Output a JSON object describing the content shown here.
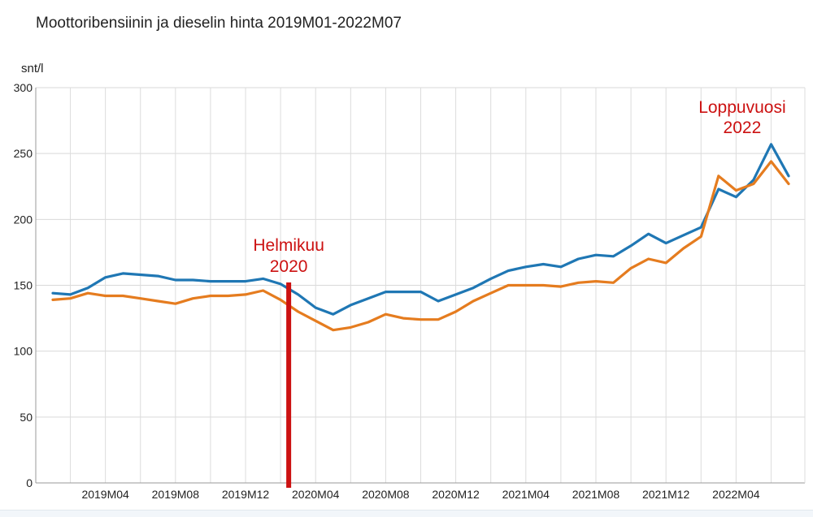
{
  "chart_data": {
    "type": "line",
    "title": "Moottoribensiinin ja dieselin hinta 2019M01-2022M07",
    "ylabel": "snt/l",
    "ylim": [
      0,
      300
    ],
    "yticks": [
      0,
      50,
      100,
      150,
      200,
      250,
      300
    ],
    "x": [
      "2019M01",
      "2019M02",
      "2019M03",
      "2019M04",
      "2019M05",
      "2019M06",
      "2019M07",
      "2019M08",
      "2019M09",
      "2019M10",
      "2019M11",
      "2019M12",
      "2020M01",
      "2020M02",
      "2020M03",
      "2020M04",
      "2020M05",
      "2020M06",
      "2020M07",
      "2020M08",
      "2020M09",
      "2020M10",
      "2020M11",
      "2020M12",
      "2021M01",
      "2021M02",
      "2021M03",
      "2021M04",
      "2021M05",
      "2021M06",
      "2021M07",
      "2021M08",
      "2021M09",
      "2021M10",
      "2021M11",
      "2021M12",
      "2022M01",
      "2022M02",
      "2022M03",
      "2022M04",
      "2022M05",
      "2022M06",
      "2022M07"
    ],
    "xtick_labels": [
      "2019M04",
      "2019M08",
      "2019M12",
      "2020M04",
      "2020M08",
      "2020M12",
      "2021M04",
      "2021M08",
      "2021M12",
      "2022M04"
    ],
    "grid": true,
    "series": [
      {
        "color": "#1f77b4",
        "values": [
          144,
          143,
          148,
          156,
          159,
          158,
          157,
          154,
          154,
          153,
          153,
          153,
          155,
          151,
          143,
          133,
          128,
          135,
          140,
          145,
          145,
          145,
          138,
          143,
          148,
          155,
          161,
          164,
          166,
          164,
          170,
          173,
          172,
          180,
          189,
          182,
          188,
          194,
          223,
          217,
          230,
          257,
          233
        ]
      },
      {
        "color": "#e57c1f",
        "values": [
          139,
          140,
          144,
          142,
          142,
          140,
          138,
          136,
          140,
          142,
          142,
          143,
          146,
          139,
          130,
          123,
          116,
          118,
          122,
          128,
          125,
          124,
          124,
          130,
          138,
          144,
          150,
          150,
          150,
          149,
          152,
          153,
          152,
          163,
          170,
          167,
          178,
          187,
          233,
          222,
          227,
          244,
          227
        ]
      }
    ],
    "annotations": [
      {
        "label_lines": [
          "Helmikuu",
          "2020"
        ],
        "x": "2020M02",
        "color": "#cc1111"
      },
      {
        "label_lines": [
          "Loppuvuosi",
          "2022"
        ],
        "x": "2022M05",
        "color": "#cc1111"
      }
    ]
  }
}
